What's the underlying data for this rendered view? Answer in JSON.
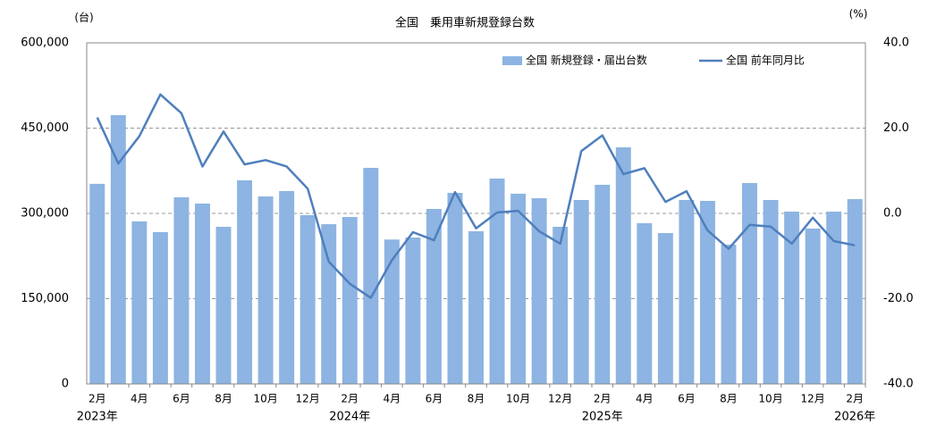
{
  "chart_data": {
    "type": "bar_line",
    "title": "全国　乗用車新規登録台数",
    "y_unit": "(台)",
    "y2_unit": "(%)",
    "categories": [
      "2月",
      null,
      "4月",
      null,
      "6月",
      null,
      "8月",
      null,
      "10月",
      null,
      "12月",
      null,
      "2月",
      null,
      "4月",
      null,
      "6月",
      null,
      "8月",
      null,
      "10月",
      null,
      "12月",
      null,
      "2月",
      null,
      "4月",
      null,
      "6月",
      null,
      "8月",
      null,
      "10月",
      null,
      "12月",
      null,
      "2月"
    ],
    "year_labels": [
      {
        "index": 0,
        "label": "2023年"
      },
      {
        "index": 12,
        "label": "2024年"
      },
      {
        "index": 24,
        "label": "2025年"
      },
      {
        "index": 36,
        "label": "2026年"
      }
    ],
    "series": [
      {
        "name": "全国 新規登録・届出台数",
        "type": "bar",
        "color": "#8db4e2",
        "values": [
          352000,
          472800,
          285900,
          267000,
          328300,
          317300,
          276400,
          358100,
          329800,
          339300,
          296900,
          281000,
          293700,
          380100,
          254000,
          257600,
          307800,
          336100,
          268600,
          361300,
          334600,
          326700,
          276400,
          323600,
          350300,
          416200,
          282700,
          265400,
          323600,
          322000,
          245000,
          353400,
          323600,
          303100,
          273300,
          303100,
          325100
        ]
      },
      {
        "name": "全国 前年同月比",
        "type": "line",
        "axis": "y2",
        "color": "#4f7fbd",
        "values": [
          22.5,
          11.7,
          18.1,
          27.9,
          23.5,
          11.0,
          19.2,
          11.5,
          12.5,
          11.0,
          5.8,
          -11.3,
          -16.5,
          -19.8,
          -11.0,
          -4.4,
          -6.3,
          5.0,
          -3.5,
          0.2,
          0.6,
          -4.2,
          -7.1,
          14.6,
          18.3,
          9.2,
          10.6,
          2.7,
          5.2,
          -4.0,
          -8.3,
          -2.7,
          -3.1,
          -7.1,
          -1.0,
          -6.5,
          -7.5
        ]
      }
    ],
    "ylim": [
      0,
      600000
    ],
    "yticks": [
      0,
      {
        "value": 150000,
        "label": "150,000"
      },
      {
        "value": 300000,
        "label": "300,000"
      },
      {
        "value": 450000,
        "label": "450,000"
      },
      {
        "value": 600000,
        "label": "600,000"
      }
    ],
    "y2lim": [
      -40,
      40
    ],
    "y2ticks": [
      {
        "value": -40,
        "label": "-40.0"
      },
      {
        "value": -20,
        "label": "-20.0"
      },
      {
        "value": 0,
        "label": "0.0"
      },
      {
        "value": 20,
        "label": "20.0"
      },
      {
        "value": 40,
        "label": "40.0"
      }
    ],
    "grid": true,
    "legend": "top-right"
  }
}
